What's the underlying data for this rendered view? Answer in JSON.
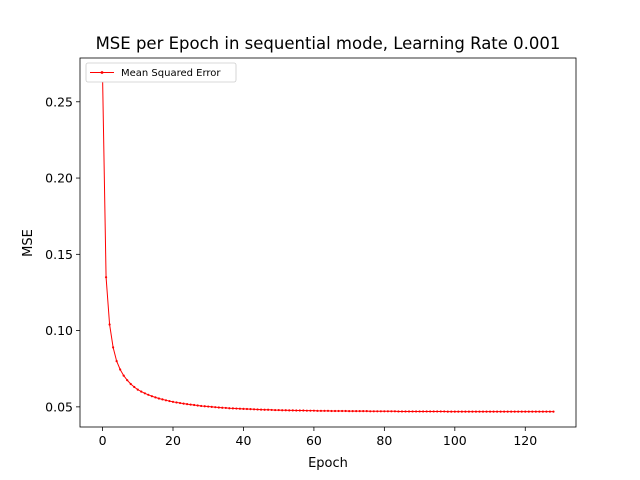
{
  "chart_data": {
    "type": "line",
    "title": "MSE per Epoch in sequential mode, Learning Rate 0.001",
    "xlabel": "Epoch",
    "ylabel": "MSE",
    "xlim": [
      -6.4,
      134.4
    ],
    "ylim": [
      0.0368,
      0.2787
    ],
    "xticks": [
      0,
      20,
      40,
      60,
      80,
      100,
      120
    ],
    "yticks": [
      0.05,
      0.1,
      0.15,
      0.2,
      0.25
    ],
    "ytick_labels": [
      "0.05",
      "0.10",
      "0.15",
      "0.20",
      "0.25"
    ],
    "grid": false,
    "legend_position": "top-left",
    "series_color": "#ff0000",
    "series": [
      {
        "name": "Mean Squared Error",
        "x": [
          0,
          1,
          2,
          3,
          4,
          5,
          6,
          7,
          8,
          9,
          10,
          11,
          12,
          13,
          14,
          15,
          16,
          17,
          18,
          19,
          20,
          21,
          22,
          23,
          24,
          25,
          26,
          27,
          28,
          29,
          30,
          31,
          32,
          33,
          34,
          35,
          36,
          37,
          38,
          39,
          40,
          41,
          42,
          43,
          44,
          45,
          46,
          47,
          48,
          49,
          50,
          51,
          52,
          53,
          54,
          55,
          56,
          57,
          58,
          59,
          60,
          61,
          62,
          63,
          64,
          65,
          66,
          67,
          68,
          69,
          70,
          71,
          72,
          73,
          74,
          75,
          76,
          77,
          78,
          79,
          80,
          81,
          82,
          83,
          84,
          85,
          86,
          87,
          88,
          89,
          90,
          91,
          92,
          93,
          94,
          95,
          96,
          97,
          98,
          99,
          100,
          101,
          102,
          103,
          104,
          105,
          106,
          107,
          108,
          109,
          110,
          111,
          112,
          113,
          114,
          115,
          116,
          117,
          118,
          119,
          120,
          121,
          122,
          123,
          124,
          125,
          126,
          127,
          128
        ],
        "values": [
          0.267,
          0.135,
          0.104,
          0.089,
          0.08,
          0.0745,
          0.0705,
          0.0675,
          0.065,
          0.063,
          0.0613,
          0.06,
          0.0589,
          0.0579,
          0.057,
          0.0562,
          0.0555,
          0.0549,
          0.0543,
          0.0538,
          0.0533,
          0.0529,
          0.0525,
          0.0521,
          0.0518,
          0.0515,
          0.0512,
          0.0509,
          0.0506,
          0.0504,
          0.0502,
          0.05,
          0.0498,
          0.0496,
          0.0494,
          0.0493,
          0.0491,
          0.049,
          0.0489,
          0.0488,
          0.0487,
          0.0486,
          0.0485,
          0.0484,
          0.0483,
          0.0482,
          0.0481,
          0.0481,
          0.048,
          0.0479,
          0.0479,
          0.0478,
          0.0478,
          0.0477,
          0.0477,
          0.0476,
          0.0476,
          0.0476,
          0.0475,
          0.0475,
          0.0475,
          0.0474,
          0.0474,
          0.0474,
          0.0474,
          0.0473,
          0.0473,
          0.0473,
          0.0473,
          0.0473,
          0.0472,
          0.0472,
          0.0472,
          0.0472,
          0.0472,
          0.0472,
          0.0471,
          0.0471,
          0.0471,
          0.0471,
          0.0471,
          0.0471,
          0.0471,
          0.0471,
          0.047,
          0.047,
          0.047,
          0.047,
          0.047,
          0.047,
          0.047,
          0.047,
          0.047,
          0.047,
          0.047,
          0.047,
          0.047,
          0.047,
          0.0469,
          0.0469,
          0.0469,
          0.0469,
          0.0469,
          0.0469,
          0.0469,
          0.0469,
          0.0469,
          0.0469,
          0.0469,
          0.0469,
          0.0469,
          0.0469,
          0.0469,
          0.0469,
          0.0469,
          0.0469,
          0.0469,
          0.0469,
          0.0469,
          0.0469,
          0.0469,
          0.0469,
          0.0469,
          0.0469,
          0.0469,
          0.0469,
          0.0469,
          0.0469,
          0.0469
        ]
      }
    ]
  }
}
